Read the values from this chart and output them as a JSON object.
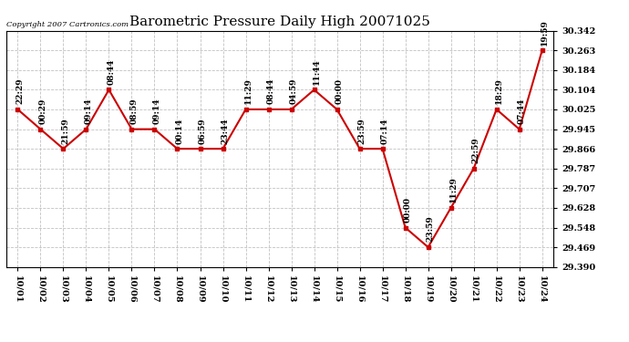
{
  "title": "Barometric Pressure Daily High 20071025",
  "copyright": "Copyright 2007 Cartronics.com",
  "x_labels": [
    "10/01",
    "10/02",
    "10/03",
    "10/04",
    "10/05",
    "10/06",
    "10/07",
    "10/08",
    "10/09",
    "10/10",
    "10/11",
    "10/12",
    "10/13",
    "10/14",
    "10/15",
    "10/16",
    "10/17",
    "10/18",
    "10/19",
    "10/20",
    "10/21",
    "10/22",
    "10/23",
    "10/24"
  ],
  "x_indices": [
    0,
    1,
    2,
    3,
    4,
    5,
    6,
    7,
    8,
    9,
    10,
    11,
    12,
    13,
    14,
    15,
    16,
    17,
    18,
    19,
    20,
    21,
    22,
    23
  ],
  "y_values": [
    30.025,
    29.945,
    29.866,
    29.945,
    30.104,
    29.945,
    29.945,
    29.866,
    29.866,
    29.866,
    30.025,
    30.025,
    30.025,
    30.104,
    30.025,
    29.866,
    29.866,
    29.548,
    29.469,
    29.628,
    29.787,
    30.025,
    29.945,
    30.263
  ],
  "annotations": [
    "22:29",
    "00:29",
    "21:59",
    "09:14",
    "08:44",
    "08:59",
    "09:14",
    "00:14",
    "06:59",
    "23:44",
    "11:29",
    "08:44",
    "04:59",
    "11:44",
    "00:00",
    "23:59",
    "07:14",
    "00:00",
    "23:59",
    "11:29",
    "22:59",
    "18:29",
    "07:44",
    "19:59"
  ],
  "y_ticks": [
    29.39,
    29.469,
    29.548,
    29.628,
    29.707,
    29.787,
    29.866,
    29.945,
    30.025,
    30.104,
    30.184,
    30.263,
    30.342
  ],
  "line_color": "#cc0000",
  "marker_color": "#cc0000",
  "background_color": "#ffffff",
  "grid_color": "#bbbbbb",
  "title_fontsize": 11,
  "annotation_fontsize": 6.5,
  "xlabel_fontsize": 7,
  "ylabel_fontsize": 7
}
